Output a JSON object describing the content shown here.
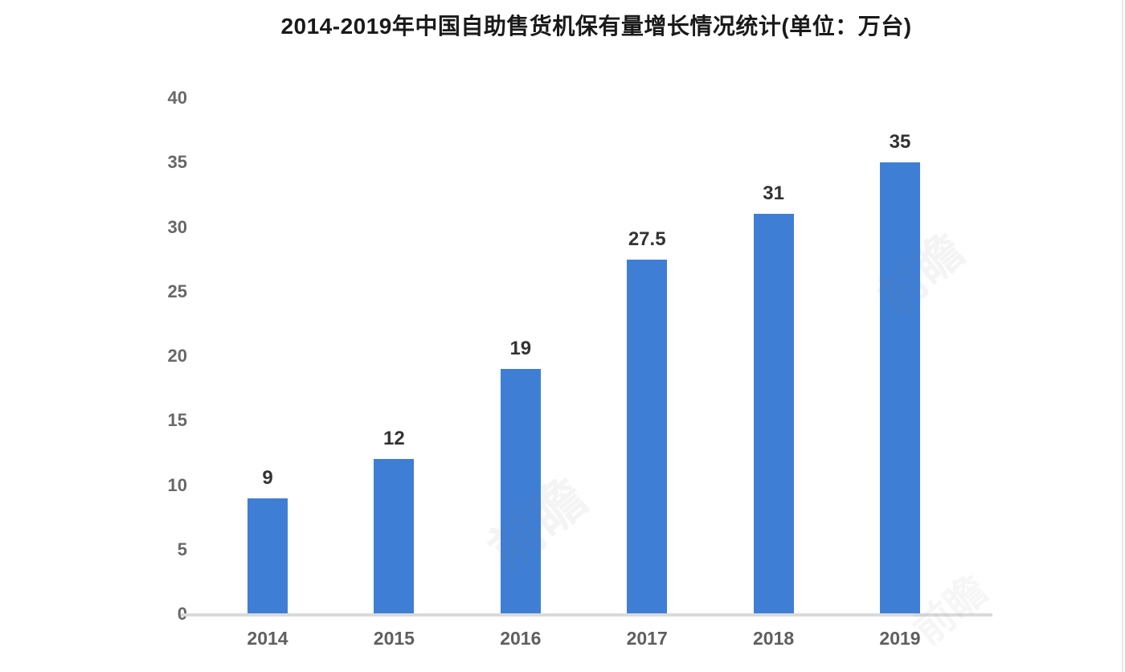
{
  "chart_data": {
    "type": "bar",
    "title": "2014-2019年中国自助售货机保有量增长情况统计(单位：万台)",
    "categories": [
      "2014",
      "2015",
      "2016",
      "2017",
      "2018",
      "2019"
    ],
    "values": [
      9,
      12,
      19,
      27.5,
      31,
      35
    ],
    "value_labels": [
      "9",
      "12",
      "19",
      "27.5",
      "31",
      "35"
    ],
    "yticks": [
      0,
      5,
      10,
      15,
      20,
      25,
      30,
      35,
      40
    ],
    "ylim": [
      0,
      40
    ],
    "xlabel": "",
    "ylabel": "",
    "grid": false,
    "legend_position": "none",
    "bar_color": "#3F7ED5",
    "title_color": "#1a1a1a",
    "axis_tick_color": "#686868",
    "value_label_color": "#333333",
    "baseline_color": "#dadada",
    "background_color": "#ffffff"
  },
  "watermark": {
    "text": "前瞻"
  }
}
